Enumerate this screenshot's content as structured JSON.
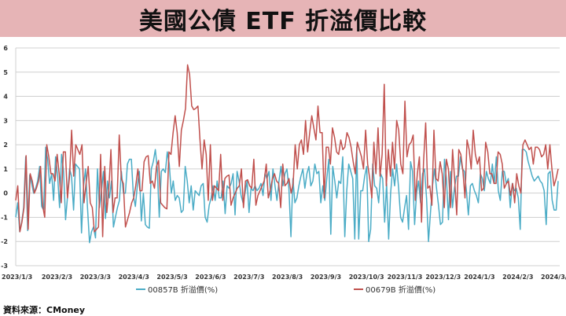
{
  "title": "美國公債 ETF 折溢價比較",
  "source": "資料來源：CMoney",
  "chart_data": {
    "type": "line",
    "title": "美國公債 ETF 折溢價比較",
    "ylim": [
      -3,
      6
    ],
    "yticks": [
      "6",
      "5",
      "4",
      "3",
      "2",
      "1",
      "0",
      "-1",
      "-2",
      "-3"
    ],
    "xticks": [
      "2023/1/3",
      "2023/2/3",
      "2023/3/3",
      "2023/4/3",
      "2023/5/3",
      "2023/6/3",
      "2023/7/3",
      "2023/8/3",
      "2023/9/3",
      "2023/10/3",
      "2023/11/3",
      "2023/12/3",
      "2024/1/3",
      "2024/2/3",
      "2024/3/3"
    ],
    "grid": true,
    "legend": "bottom",
    "series": [
      {
        "name": "00857B 折溢價(%)",
        "color": "#4bacc6",
        "values": [
          -1,
          -0.4,
          -1.6,
          -1.2,
          -0.6,
          1.5,
          -1.55,
          0.75,
          0.4,
          0,
          0.2,
          0.5,
          1.1,
          -0.55,
          -0.7,
          1.9,
          1.4,
          0.4,
          0.8,
          -0.3,
          1.5,
          0.7,
          -0.6,
          1.6,
          0.9,
          -1.1,
          -0.1,
          1,
          0.7,
          -0.7,
          1.2,
          1.1,
          1,
          -1.65,
          0.3,
          1,
          -0.6,
          -2.05,
          -1.6,
          -1.4,
          -1.85,
          1.0,
          -0.6,
          0.1,
          0.9,
          -1.05,
          0.5,
          -0.2,
          0.5,
          -1.4,
          -1.0,
          -0.6,
          -0.3,
          0.9,
          0,
          0,
          1.2,
          1.4,
          1.4,
          -0.1,
          -0.55,
          0.3,
          0.9,
          -1.15,
          0,
          -1.3,
          -1.4,
          -1.45,
          1,
          1.3,
          1.8,
          1.0,
          -1,
          0.9,
          1,
          0.85,
          1.7,
          1.2,
          0,
          0.5,
          -0.3,
          -0.1,
          -0.2,
          -0.8,
          -0.7,
          1.1,
          0.5,
          -0.4,
          0.3,
          -0.7,
          0.1,
          0,
          -0.1,
          0.3,
          0.4,
          -1,
          -1.2,
          -0.5,
          -0.2,
          0.3,
          -0.3,
          0.5,
          -0.2,
          -0.2,
          0.5,
          -0.85,
          0.3,
          0.2,
          0.4,
          0.8,
          -0.9,
          0.9,
          0.5,
          -0.1,
          -0.4,
          0,
          0.5,
          -0.8,
          0.2,
          0.1,
          0.3,
          0.1,
          0.2,
          0.4,
          -0.1,
          0.8,
          0.6,
          0.9,
          -0.3,
          1,
          0.3,
          -0.3,
          0.5,
          1.1,
          0.3,
          0.8,
          1,
          0.2,
          -1.8,
          0.6,
          -0.4,
          -0.2,
          0.3,
          0.7,
          1,
          0.2,
          0.8,
          1.1,
          0.3,
          0.5,
          1.2,
          0.8,
          0.9,
          -0.4,
          0.3,
          -0.3,
          0.6,
          1.4,
          -1.7,
          1.1,
          0.5,
          -0.2,
          0.5,
          0.4,
          1.5,
          -1.8,
          0.1,
          1.2,
          0.9,
          0.6,
          -1.9,
          1.9,
          -1.9,
          0.1,
          0.1,
          0.7,
          1.1,
          -2.0,
          -1.5,
          1.2,
          0.3,
          0.2,
          -0.4,
          0.8,
          0.6,
          -1.2,
          0.4,
          -1.9,
          0,
          1,
          0.3,
          1.2,
          0.2,
          -1,
          -1.2,
          -0.6,
          -0.1,
          -1.5,
          1.3,
          0.9,
          -1.3,
          0,
          0.5,
          -0.4,
          0.8,
          1.0,
          -0.2,
          -2.0,
          -0.8,
          0.3,
          1.0,
          0.2,
          -0.5,
          -1.3,
          -1.2,
          1.4,
          0.6,
          -1.1,
          0.9,
          -0.6,
          0.2,
          0.7,
          0.7,
          1.5,
          1,
          0.9,
          0.1,
          -0.9,
          0.3,
          0.4,
          0.1,
          -0.1,
          -0.4,
          0.8,
          0.6,
          0.1,
          0.9,
          0.6,
          0.4,
          1.2,
          0.4,
          1.5,
          0.1,
          -0.3,
          0.9,
          0.9,
          0.4,
          0.6,
          -0.6,
          0.4,
          0.1,
          0.2,
          -0.2,
          -1.5,
          1.8,
          1.8,
          1.7,
          1.3,
          1.0,
          0.7,
          0.5,
          0.6,
          0.7,
          0.5,
          0.4,
          0.1,
          -1.3,
          0.8,
          0.9,
          -0.3,
          -0.7,
          -0.7,
          0.5
        ]
      },
      {
        "name": "00679B 折溢價(%)",
        "color": "#c0504d",
        "values": [
          -0.3,
          0.3,
          -1.6,
          -1.2,
          -0.6,
          1.55,
          -1.5,
          0.8,
          0.5,
          0,
          0.2,
          0.5,
          1.1,
          -0.5,
          -1,
          2,
          1.5,
          0.8,
          0.8,
          0.5,
          1.6,
          0.8,
          -0.4,
          1.7,
          1.7,
          -0.2,
          0.7,
          2.6,
          0.7,
          2,
          1.8,
          1.6,
          2,
          -0.4,
          0.4,
          1.1,
          -0.4,
          -0.6,
          -1.6,
          -1.5,
          -1.4,
          1.6,
          -1.8,
          1.1,
          -0.8,
          0.2,
          1.8,
          -0.8,
          -0.2,
          -0.2,
          2.4,
          0.6,
          0.4,
          -1.4,
          -1.1,
          -0.8,
          -0.4,
          -0.2,
          0.3,
          1,
          0.1,
          0.1,
          1.3,
          1.5,
          1.55,
          0.4,
          0.5,
          0.2,
          1.1,
          1.35,
          -0.4,
          -0.5,
          -0.6,
          -0.65,
          1.7,
          1.6,
          2.5,
          3.2,
          2.5,
          1.1,
          2.6,
          3,
          3.5,
          5.3,
          4.9,
          3.6,
          3.45,
          3.5,
          3.6,
          2.2,
          1,
          2.2,
          1.6,
          -0.3,
          2,
          -0.3,
          0.3,
          0.2,
          0.1,
          1.6,
          -0.3,
          0.6,
          0.7,
          0.75,
          -0.5,
          -0.2,
          0,
          0.2,
          0.3,
          1,
          -0.6,
          0.5,
          0.55,
          0.3,
          0.2,
          1.4,
          -0.5,
          -0.1,
          0.1,
          0.3,
          0.5,
          1.2,
          -0.2,
          0.15,
          0.6,
          0.8,
          0.5,
          0.4,
          -0.6,
          1.2,
          0.3,
          0.4,
          0.6,
          0,
          0.4,
          2,
          1,
          2,
          2.2,
          1.6,
          3,
          1.7,
          2.5,
          3.2,
          2.7,
          2.2,
          3.6,
          2.5,
          2.5,
          -0.2,
          1.9,
          1.9,
          1.2,
          2.7,
          2.3,
          1.7,
          1.6,
          2.2,
          1.8,
          1.9,
          2.5,
          2.3,
          1.9,
          1.3,
          0.8,
          2.1,
          1.8,
          1.5,
          1,
          2.6,
          1.2,
          0.6,
          -0.2,
          2.1,
          0.8,
          2.7,
          0.7,
          1.6,
          4.5,
          0.3,
          1.8,
          0.7,
          2.1,
          1,
          3.0,
          2.6,
          1.2,
          0.8,
          3.8,
          1.5,
          2,
          2.1,
          2.4,
          -0.3,
          0.8,
          1.5,
          -1.2,
          1.3,
          2.9,
          0.2,
          0.3,
          -0.5,
          2.6,
          0.6,
          0.5,
          1.3,
          0.8,
          -0.6,
          1.4,
          1,
          -0.6,
          1.8,
          0.6,
          -0.9,
          1.8,
          1.6,
          0.9,
          -0.2,
          2.2,
          1.8,
          1,
          2.6,
          1.6,
          1.2,
          1.5,
          0.1,
          0.2,
          2.1,
          1.7,
          0.8,
          0.8,
          0.4,
          0.4,
          1.7,
          1.6,
          1.2,
          0.2,
          0.4,
          0.5,
          -0.1,
          0.4,
          -0.4,
          0.8,
          0.3,
          0,
          2,
          2.2,
          2.0,
          1.8,
          1.9,
          1.2,
          1.9,
          1.9,
          1.8,
          1.5,
          1.6,
          2,
          1,
          2,
          1.0,
          0.3,
          0.6,
          1.0
        ]
      }
    ]
  }
}
